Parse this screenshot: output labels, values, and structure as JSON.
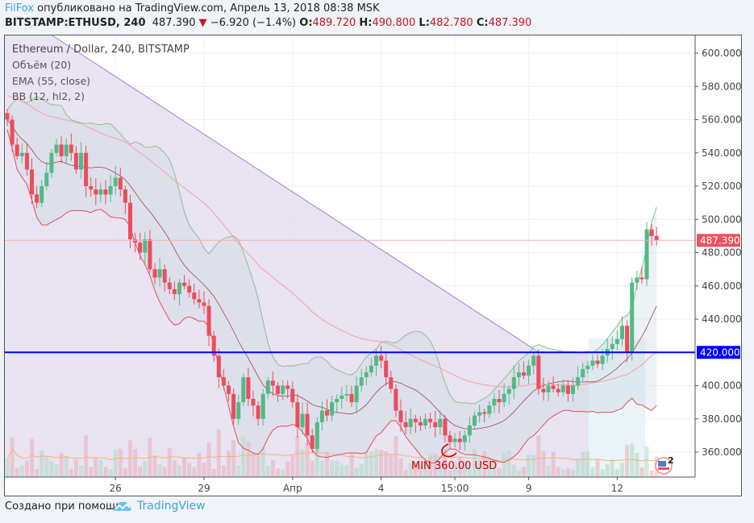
{
  "header": {
    "user": "FilFox",
    "published": "опубликовано на TradingView.com, Апрель 13, 2018 08:38 MSK"
  },
  "ticker": {
    "symbol": "BITSTAMP:ETHUSD, 240",
    "last": "487.390",
    "change": "−6.920 (−1.4%)",
    "o_label": "O:",
    "o": "489.720",
    "h_label": "H:",
    "h": "490.800",
    "l_label": "L:",
    "l": "482.780",
    "c_label": "C:",
    "c": "487.390"
  },
  "legend": {
    "title": "Ethereum / Dollar, 240, BITSTAMP",
    "volume": "Объём (20)",
    "ema": "EMA (55, close)",
    "bb": "BB (12, hl2, 2)"
  },
  "annotation": {
    "min_label": "MIN 360.00 USD"
  },
  "badge": {
    "count": "2"
  },
  "footer": {
    "created": "Создано при помощи",
    "brand": "TradingView"
  },
  "colors": {
    "up": "#53b987",
    "down": "#eb4d5c",
    "level": "#0000ff",
    "accent": "#3ba4e0"
  },
  "chart_data": {
    "type": "candlestick",
    "ylim": [
      345,
      612
    ],
    "y_ticks": [
      "600.000",
      "580.000",
      "560.000",
      "540.000",
      "520.000",
      "500.000",
      "480.000",
      "460.000",
      "440.000",
      "400.000",
      "380.000",
      "360.000"
    ],
    "y_tick_values": [
      600,
      580,
      560,
      540,
      520,
      500,
      480,
      460,
      440,
      400,
      380,
      360
    ],
    "x_ticks": [
      {
        "label": "26",
        "index": 22
      },
      {
        "label": "29",
        "index": 40
      },
      {
        "label": "Апр",
        "index": 58
      },
      {
        "label": "4",
        "index": 76
      },
      {
        "label": "15:00",
        "index": 91
      },
      {
        "label": "9",
        "index": 106
      },
      {
        "label": "12",
        "index": 124
      }
    ],
    "level": {
      "value": 420,
      "label": "420.000"
    },
    "last_price": {
      "value": 487.39,
      "label": "487.390"
    },
    "closes": [
      560,
      545,
      538,
      540,
      530,
      515,
      510,
      520,
      528,
      540,
      545,
      538,
      545,
      540,
      530,
      540,
      520,
      518,
      515,
      518,
      515,
      520,
      525,
      518,
      510,
      488,
      486,
      480,
      488,
      470,
      465,
      470,
      462,
      458,
      455,
      462,
      460,
      456,
      452,
      450,
      448,
      430,
      418,
      405,
      400,
      395,
      380,
      390,
      405,
      392,
      388,
      380,
      395,
      403,
      400,
      395,
      400,
      398,
      390,
      375,
      383,
      370,
      362,
      378,
      385,
      382,
      390,
      392,
      394,
      395,
      390,
      400,
      405,
      408,
      412,
      418,
      415,
      405,
      398,
      385,
      378,
      375,
      380,
      378,
      376,
      380,
      378,
      375,
      380,
      370,
      366,
      368,
      366,
      370,
      376,
      382,
      384,
      383,
      388,
      392,
      390,
      395,
      398,
      405,
      408,
      406,
      412,
      418,
      398,
      396,
      400,
      398,
      396,
      400,
      395,
      400,
      405,
      410,
      412,
      415,
      413,
      418,
      422,
      425,
      428,
      436,
      420,
      462,
      465,
      464,
      494,
      490,
      487.39
    ]
  }
}
